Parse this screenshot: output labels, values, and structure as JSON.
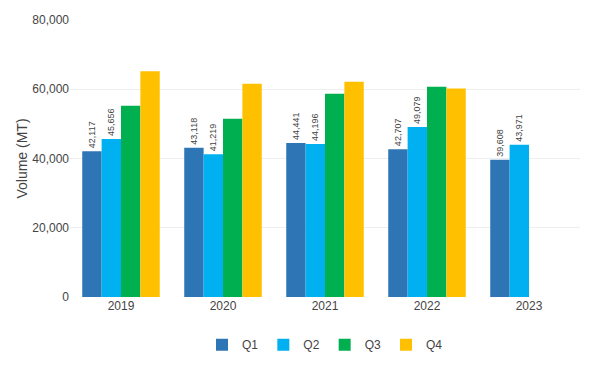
{
  "chart_data": {
    "type": "bar",
    "categories": [
      "2019",
      "2020",
      "2021",
      "2022",
      "2023"
    ],
    "series": [
      {
        "name": "Q1",
        "color": "#2e75b6",
        "values": [
          42117,
          43118,
          44441,
          42707,
          39608
        ],
        "data_labels": true,
        "value_labels": [
          "42,117",
          "43,118",
          "44,441",
          "42,707",
          "39,608"
        ]
      },
      {
        "name": "Q2",
        "color": "#00b0f0",
        "values": [
          45656,
          41219,
          44196,
          49079,
          43971
        ],
        "data_labels": true,
        "value_labels": [
          "45,656",
          "41,219",
          "44,196",
          "49,079",
          "43,971"
        ]
      },
      {
        "name": "Q3",
        "color": "#00b050",
        "values": [
          55200,
          51500,
          58700,
          60700,
          null
        ]
      },
      {
        "name": "Q4",
        "color": "#ffc000",
        "values": [
          65200,
          61600,
          62200,
          60200,
          null
        ]
      }
    ],
    "ylabel": "Volume (MT)",
    "ylim": [
      0,
      80000
    ],
    "yticks": [
      0,
      {
        "value": 20000,
        "label": "20,000"
      },
      {
        "value": 40000,
        "label": "40,000"
      },
      {
        "value": 60000,
        "label": "60,000"
      },
      {
        "value": 80000,
        "label": "80,000"
      }
    ],
    "grid": true,
    "legend": "bottom"
  }
}
